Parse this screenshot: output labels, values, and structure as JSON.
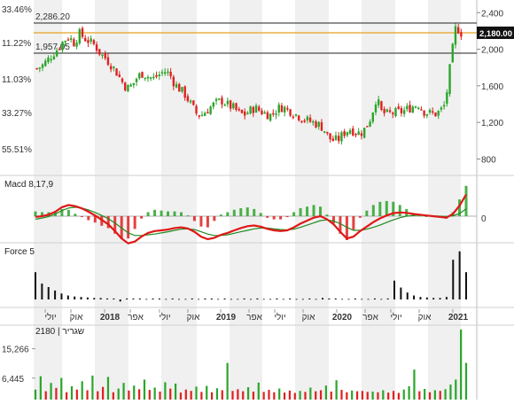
{
  "chart_data": {
    "type": "candlestick",
    "colors": {
      "up": "#2aa52a",
      "down": "#e02020",
      "macd_line": "#e01818",
      "signal_line": "#1f8a1f",
      "resistance": "#222222",
      "current_level": "#e8a020",
      "grid_band": "#f0f0f0",
      "volume_up": "#2aa52a",
      "volume_down": "#e02020",
      "force": "#111111",
      "badge_bg": "#111111"
    },
    "price_pane": {
      "left_pct_labels": [
        "33.46%",
        "11.22%",
        "11.03%",
        "33.27%",
        "55.51%"
      ],
      "right_ticks": [
        "2,400",
        "2,000",
        "1,600",
        "1,200",
        "800"
      ],
      "right_tick_values": [
        2400,
        2000,
        1600,
        1200,
        800
      ],
      "ylim": [
        640,
        2480
      ],
      "resistance_levels": [
        {
          "label": "2,286.20",
          "value": 2286.2
        },
        {
          "label": "1,957.05",
          "value": 1957.05
        }
      ],
      "current_level": 2180,
      "current_badge": "2,180.00",
      "close_series": [
        1790,
        1820,
        1880,
        1950,
        2010,
        2090,
        2140,
        2070,
        2170,
        2120,
        2080,
        2040,
        1950,
        1900,
        1830,
        1750,
        1650,
        1570,
        1610,
        1700,
        1740,
        1700,
        1680,
        1720,
        1760,
        1730,
        1620,
        1560,
        1500,
        1400,
        1300,
        1280,
        1330,
        1380,
        1420,
        1440,
        1390,
        1360,
        1310,
        1280,
        1320,
        1360,
        1330,
        1300,
        1280,
        1330,
        1370,
        1350,
        1320,
        1280,
        1250,
        1220,
        1200,
        1180,
        1140,
        1030,
        1000,
        1020,
        1090,
        1130,
        1100,
        1080,
        1140,
        1260,
        1470,
        1310,
        1290,
        1300,
        1310,
        1320,
        1350,
        1380,
        1400,
        1320,
        1300,
        1290,
        1320,
        1400,
        1850,
        2250,
        2180
      ]
    },
    "macd_pane": {
      "title": "Macd 8,17,9",
      "right_ticks": [
        "0"
      ],
      "macd": [
        -2,
        0,
        4,
        12,
        24,
        30,
        27,
        21,
        12,
        2,
        -10,
        -22,
        -40,
        -60,
        -73,
        -68,
        -55,
        -45,
        -40,
        -38,
        -36,
        -32,
        -30,
        -33,
        -42,
        -55,
        -62,
        -58,
        -50,
        -45,
        -38,
        -32,
        -27,
        -25,
        -28,
        -34,
        -38,
        -40,
        -38,
        -30,
        -20,
        -12,
        -4,
        0,
        -8,
        -22,
        -42,
        -60,
        -55,
        -40,
        -28,
        -16,
        -6,
        2,
        8,
        10,
        9,
        6,
        4,
        2,
        0,
        -2,
        -4,
        6,
        28,
        58
      ],
      "signal": [
        -8,
        -5,
        -1,
        6,
        15,
        22,
        24,
        22,
        17,
        10,
        2,
        -7,
        -18,
        -32,
        -45,
        -52,
        -52,
        -50,
        -48,
        -45,
        -42,
        -38,
        -35,
        -34,
        -36,
        -42,
        -48,
        -52,
        -52,
        -50,
        -46,
        -42,
        -38,
        -34,
        -32,
        -32,
        -34,
        -36,
        -37,
        -35,
        -30,
        -24,
        -18,
        -12,
        -10,
        -13,
        -20,
        -30,
        -38,
        -38,
        -35,
        -30,
        -24,
        -17,
        -10,
        -4,
        0,
        2,
        3,
        2,
        1,
        0,
        -1,
        1,
        7,
        20
      ]
    },
    "force_pane": {
      "title": "Force 5",
      "values": [
        0.55,
        0.32,
        0.25,
        0.18,
        0.12,
        0.08,
        0.06,
        0.05,
        0.04,
        0.03,
        0.03,
        0.02,
        0.02,
        -0.04,
        0.02,
        0.02,
        0.02,
        0.01,
        0.02,
        0.02,
        0.01,
        0.02,
        0.01,
        0.01,
        0.02,
        0.01,
        0.02,
        0.02,
        0.01,
        0.02,
        0.01,
        0.01,
        0.02,
        0.01,
        0.02,
        0.01,
        0.01,
        0.02,
        0.01,
        0.02,
        0.01,
        0.01,
        0.02,
        0.01,
        0.03,
        0.02,
        0.02,
        0.01,
        0.01,
        0.02,
        0.01,
        0.01,
        0.02,
        0.01,
        0.02,
        0.38,
        0.24,
        0.14,
        0.08,
        0.05,
        0.04,
        0.03,
        0.03,
        0.05,
        0.8,
        0.97,
        0.55
      ]
    },
    "time_axis": {
      "labels": [
        "יולי",
        "אוק",
        "2018",
        "אפר",
        "יולי",
        "אוק",
        "2019",
        "אפר",
        "יולי",
        "אוק",
        "2020",
        "אפר",
        "יולי",
        "אוק",
        "2021"
      ],
      "bold": [
        false,
        false,
        true,
        false,
        false,
        false,
        true,
        false,
        false,
        false,
        true,
        false,
        false,
        false,
        true
      ]
    },
    "volume_pane": {
      "title": "שגריר | 2180",
      "left_ticks": [
        "15,266",
        "6,445"
      ],
      "left_tick_values": [
        15266,
        6445
      ],
      "ylim": [
        0,
        21000
      ],
      "values": [
        3000,
        7000,
        2500,
        5000,
        3500,
        6500,
        2200,
        4000,
        3000,
        5500,
        2800,
        7200,
        2500,
        3800,
        6800,
        2200,
        3300,
        5000,
        2700,
        4200,
        3100,
        6000,
        2900,
        3600,
        2400,
        5200,
        3300,
        4800,
        2100,
        3000,
        2600,
        3900,
        2300,
        4100,
        2200,
        3400,
        2800,
        11000,
        2600,
        3100,
        2500,
        3700,
        2400,
        5100,
        2300,
        2900,
        2200,
        3300,
        2100,
        2700,
        2000,
        2600,
        2300,
        3600,
        2500,
        2800,
        4200,
        2400,
        5800,
        2900,
        2200,
        2700,
        2500,
        2600,
        2300,
        2400,
        2200,
        2800,
        2100,
        2600,
        2000,
        3000,
        4000,
        9000,
        2500,
        3200,
        2200,
        2800,
        2600,
        3100,
        4500,
        6000,
        21000,
        11000
      ],
      "up": [
        true,
        true,
        false,
        true,
        false,
        true,
        false,
        true,
        false,
        true,
        false,
        true,
        false,
        false,
        true,
        false,
        true,
        true,
        false,
        true,
        false,
        true,
        false,
        true,
        false,
        true,
        false,
        true,
        false,
        false,
        false,
        true,
        false,
        true,
        false,
        true,
        false,
        true,
        false,
        false,
        false,
        true,
        false,
        true,
        false,
        false,
        false,
        true,
        false,
        false,
        false,
        true,
        false,
        true,
        false,
        false,
        true,
        false,
        true,
        false,
        false,
        true,
        false,
        false,
        false,
        true,
        false,
        true,
        false,
        false,
        false,
        true,
        true,
        true,
        false,
        true,
        false,
        true,
        false,
        true,
        true,
        true,
        true,
        true
      ]
    }
  }
}
